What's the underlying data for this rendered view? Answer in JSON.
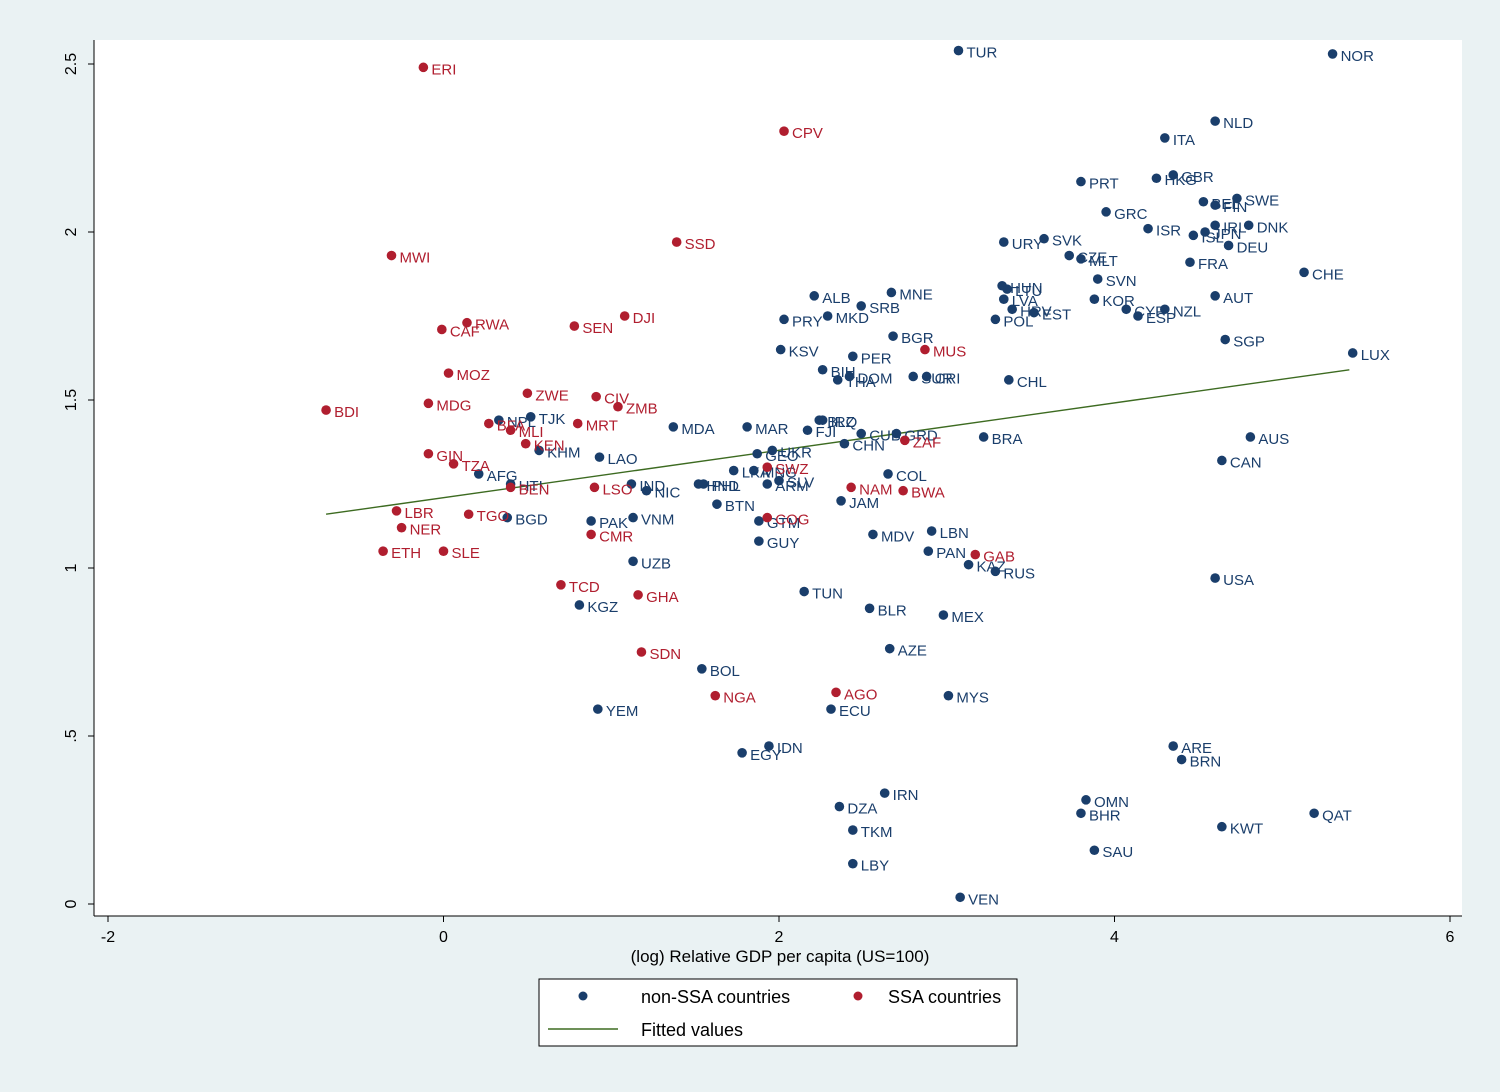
{
  "chart_data": {
    "type": "scatter",
    "xlabel": "(log) Relative GDP per capita (US=100)",
    "ylabel": "",
    "xlim": [
      -2,
      6
    ],
    "ylim": [
      0,
      2.55
    ],
    "x_ticks": [
      {
        "v": -2,
        "label": "-2"
      },
      {
        "v": 0,
        "label": "0"
      },
      {
        "v": 2,
        "label": "2"
      },
      {
        "v": 4,
        "label": "4"
      },
      {
        "v": 6,
        "label": "6"
      }
    ],
    "y_ticks": [
      {
        "v": 0,
        "label": "0"
      },
      {
        "v": 0.5,
        "label": ".5"
      },
      {
        "v": 1,
        "label": "1"
      },
      {
        "v": 1.5,
        "label": "1.5"
      },
      {
        "v": 2,
        "label": "2"
      },
      {
        "v": 2.5,
        "label": "2.5"
      }
    ],
    "grid": false,
    "colors": {
      "non_ssa": "#1a3e6b",
      "ssa": "#b01e2f",
      "fit": "#3d6b21"
    },
    "legend": {
      "position": "bottom",
      "entries": [
        {
          "label": "non-SSA countries",
          "kind": "non_ssa"
        },
        {
          "label": "SSA countries",
          "kind": "ssa"
        },
        {
          "label": "Fitted values",
          "kind": "fit"
        }
      ]
    },
    "fitted_line": [
      {
        "x": -0.7,
        "y": 1.16
      },
      {
        "x": 5.4,
        "y": 1.59
      }
    ],
    "series": [
      {
        "name": "non-SSA countries",
        "kind": "non_ssa",
        "points": [
          {
            "label": "TUR",
            "x": 3.07,
            "y": 2.54
          },
          {
            "label": "NOR",
            "x": 5.3,
            "y": 2.53
          },
          {
            "label": "NLD",
            "x": 4.6,
            "y": 2.33
          },
          {
            "label": "ITA",
            "x": 4.3,
            "y": 2.28
          },
          {
            "label": "PRT",
            "x": 3.8,
            "y": 2.15
          },
          {
            "label": "HKG",
            "x": 4.25,
            "y": 2.16
          },
          {
            "label": "GBR",
            "x": 4.35,
            "y": 2.17
          },
          {
            "label": "SWE",
            "x": 4.73,
            "y": 2.1
          },
          {
            "label": "BEL",
            "x": 4.53,
            "y": 2.09
          },
          {
            "label": "FIN",
            "x": 4.6,
            "y": 2.08
          },
          {
            "label": "GRC",
            "x": 3.95,
            "y": 2.06
          },
          {
            "label": "ISR",
            "x": 4.2,
            "y": 2.01
          },
          {
            "label": "IRL",
            "x": 4.6,
            "y": 2.02
          },
          {
            "label": "DNK",
            "x": 4.8,
            "y": 2.02
          },
          {
            "label": "ISL",
            "x": 4.47,
            "y": 1.99
          },
          {
            "label": "JPN",
            "x": 4.54,
            "y": 2.0
          },
          {
            "label": "DEU",
            "x": 4.68,
            "y": 1.96
          },
          {
            "label": "URY",
            "x": 3.34,
            "y": 1.97
          },
          {
            "label": "SVK",
            "x": 3.58,
            "y": 1.98
          },
          {
            "label": "CZE",
            "x": 3.73,
            "y": 1.93
          },
          {
            "label": "MLT",
            "x": 3.8,
            "y": 1.92
          },
          {
            "label": "FRA",
            "x": 4.45,
            "y": 1.91
          },
          {
            "label": "CHE",
            "x": 5.13,
            "y": 1.88
          },
          {
            "label": "SVN",
            "x": 3.9,
            "y": 1.86
          },
          {
            "label": "HUN",
            "x": 3.33,
            "y": 1.84
          },
          {
            "label": "LTU",
            "x": 3.36,
            "y": 1.83
          },
          {
            "label": "AUT",
            "x": 4.6,
            "y": 1.81
          },
          {
            "label": "ALB",
            "x": 2.21,
            "y": 1.81
          },
          {
            "label": "MNE",
            "x": 2.67,
            "y": 1.82
          },
          {
            "label": "LVA",
            "x": 3.34,
            "y": 1.8
          },
          {
            "label": "KOR",
            "x": 3.88,
            "y": 1.8
          },
          {
            "label": "SRB",
            "x": 2.49,
            "y": 1.78
          },
          {
            "label": "HRV",
            "x": 3.39,
            "y": 1.77
          },
          {
            "label": "CYP",
            "x": 4.07,
            "y": 1.77
          },
          {
            "label": "NZL",
            "x": 4.3,
            "y": 1.77
          },
          {
            "label": "EST",
            "x": 3.52,
            "y": 1.76
          },
          {
            "label": "ESP",
            "x": 4.14,
            "y": 1.75
          },
          {
            "label": "MKD",
            "x": 2.29,
            "y": 1.75
          },
          {
            "label": "PRY",
            "x": 2.03,
            "y": 1.74
          },
          {
            "label": "POL",
            "x": 3.29,
            "y": 1.74
          },
          {
            "label": "BGR",
            "x": 2.68,
            "y": 1.69
          },
          {
            "label": "SGP",
            "x": 4.66,
            "y": 1.68
          },
          {
            "label": "KSV",
            "x": 2.01,
            "y": 1.65
          },
          {
            "label": "LUX",
            "x": 5.42,
            "y": 1.64
          },
          {
            "label": "PER",
            "x": 2.44,
            "y": 1.63
          },
          {
            "label": "BIH",
            "x": 2.26,
            "y": 1.59
          },
          {
            "label": "DOM",
            "x": 2.42,
            "y": 1.57
          },
          {
            "label": "THA",
            "x": 2.35,
            "y": 1.56
          },
          {
            "label": "SUR",
            "x": 2.8,
            "y": 1.57
          },
          {
            "label": "CRI",
            "x": 2.88,
            "y": 1.57
          },
          {
            "label": "CHL",
            "x": 3.37,
            "y": 1.56
          },
          {
            "label": "TJK",
            "x": 0.52,
            "y": 1.45
          },
          {
            "label": "NPL",
            "x": 0.33,
            "y": 1.44
          },
          {
            "label": "BLZ",
            "x": 2.24,
            "y": 1.44
          },
          {
            "label": "IRQ",
            "x": 2.26,
            "y": 1.44
          },
          {
            "label": "MDA",
            "x": 1.37,
            "y": 1.42
          },
          {
            "label": "MAR",
            "x": 1.81,
            "y": 1.42
          },
          {
            "label": "FJI",
            "x": 2.17,
            "y": 1.41
          },
          {
            "label": "CUB",
            "x": 2.49,
            "y": 1.4
          },
          {
            "label": "GRD",
            "x": 2.7,
            "y": 1.4
          },
          {
            "label": "BRA",
            "x": 3.22,
            "y": 1.39
          },
          {
            "label": "AUS",
            "x": 4.81,
            "y": 1.39
          },
          {
            "label": "CHN",
            "x": 2.39,
            "y": 1.37
          },
          {
            "label": "KHM",
            "x": 0.57,
            "y": 1.35
          },
          {
            "label": "UKR",
            "x": 1.96,
            "y": 1.35
          },
          {
            "label": "GEO",
            "x": 1.87,
            "y": 1.34
          },
          {
            "label": "LAO",
            "x": 0.93,
            "y": 1.33
          },
          {
            "label": "CAN",
            "x": 4.64,
            "y": 1.32
          },
          {
            "label": "LKA",
            "x": 1.73,
            "y": 1.29
          },
          {
            "label": "MNG",
            "x": 1.85,
            "y": 1.29
          },
          {
            "label": "COL",
            "x": 2.65,
            "y": 1.28
          },
          {
            "label": "AFG",
            "x": 0.21,
            "y": 1.28
          },
          {
            "label": "HTI",
            "x": 0.4,
            "y": 1.25
          },
          {
            "label": "IND",
            "x": 1.12,
            "y": 1.25
          },
          {
            "label": "HND",
            "x": 1.52,
            "y": 1.25
          },
          {
            "label": "PHL",
            "x": 1.55,
            "y": 1.25
          },
          {
            "label": "SLV",
            "x": 2.0,
            "y": 1.26
          },
          {
            "label": "ARM",
            "x": 1.93,
            "y": 1.25
          },
          {
            "label": "NIC",
            "x": 1.21,
            "y": 1.23
          },
          {
            "label": "JAM",
            "x": 2.37,
            "y": 1.2
          },
          {
            "label": "BTN",
            "x": 1.63,
            "y": 1.19
          },
          {
            "label": "BGD",
            "x": 0.38,
            "y": 1.15
          },
          {
            "label": "VNM",
            "x": 1.13,
            "y": 1.15
          },
          {
            "label": "PAK",
            "x": 0.88,
            "y": 1.14
          },
          {
            "label": "GTM",
            "x": 1.88,
            "y": 1.14
          },
          {
            "label": "LBN",
            "x": 2.91,
            "y": 1.11
          },
          {
            "label": "MDV",
            "x": 2.56,
            "y": 1.1
          },
          {
            "label": "GUY",
            "x": 1.88,
            "y": 1.08
          },
          {
            "label": "PAN",
            "x": 2.89,
            "y": 1.05
          },
          {
            "label": "UZB",
            "x": 1.13,
            "y": 1.02
          },
          {
            "label": "KAZ",
            "x": 3.13,
            "y": 1.01
          },
          {
            "label": "RUS",
            "x": 3.29,
            "y": 0.99
          },
          {
            "label": "USA",
            "x": 4.6,
            "y": 0.97
          },
          {
            "label": "TUN",
            "x": 2.15,
            "y": 0.93
          },
          {
            "label": "KGZ",
            "x": 0.81,
            "y": 0.89
          },
          {
            "label": "BLR",
            "x": 2.54,
            "y": 0.88
          },
          {
            "label": "MEX",
            "x": 2.98,
            "y": 0.86
          },
          {
            "label": "AZE",
            "x": 2.66,
            "y": 0.76
          },
          {
            "label": "BOL",
            "x": 1.54,
            "y": 0.7
          },
          {
            "label": "MYS",
            "x": 3.01,
            "y": 0.62
          },
          {
            "label": "YEM",
            "x": 0.92,
            "y": 0.58
          },
          {
            "label": "ECU",
            "x": 2.31,
            "y": 0.58
          },
          {
            "label": "ARE",
            "x": 4.35,
            "y": 0.47
          },
          {
            "label": "IDN",
            "x": 1.94,
            "y": 0.47
          },
          {
            "label": "EGY",
            "x": 1.78,
            "y": 0.45
          },
          {
            "label": "BRN",
            "x": 4.4,
            "y": 0.43
          },
          {
            "label": "IRN",
            "x": 2.63,
            "y": 0.33
          },
          {
            "label": "OMN",
            "x": 3.83,
            "y": 0.31
          },
          {
            "label": "DZA",
            "x": 2.36,
            "y": 0.29
          },
          {
            "label": "BHR",
            "x": 3.8,
            "y": 0.27
          },
          {
            "label": "QAT",
            "x": 5.19,
            "y": 0.27
          },
          {
            "label": "KWT",
            "x": 4.64,
            "y": 0.23
          },
          {
            "label": "TKM",
            "x": 2.44,
            "y": 0.22
          },
          {
            "label": "SAU",
            "x": 3.88,
            "y": 0.16
          },
          {
            "label": "LBY",
            "x": 2.44,
            "y": 0.12
          },
          {
            "label": "VEN",
            "x": 3.08,
            "y": 0.02
          }
        ]
      },
      {
        "name": "SSA countries",
        "kind": "ssa",
        "points": [
          {
            "label": "ERI",
            "x": -0.12,
            "y": 2.49
          },
          {
            "label": "CPV",
            "x": 2.03,
            "y": 2.3
          },
          {
            "label": "SSD",
            "x": 1.39,
            "y": 1.97
          },
          {
            "label": "MWI",
            "x": -0.31,
            "y": 1.93
          },
          {
            "label": "RWA",
            "x": 0.14,
            "y": 1.73
          },
          {
            "label": "CAF",
            "x": -0.01,
            "y": 1.71
          },
          {
            "label": "SEN",
            "x": 0.78,
            "y": 1.72
          },
          {
            "label": "DJI",
            "x": 1.08,
            "y": 1.75
          },
          {
            "label": "MUS",
            "x": 2.87,
            "y": 1.65
          },
          {
            "label": "MOZ",
            "x": 0.03,
            "y": 1.58
          },
          {
            "label": "ZWE",
            "x": 0.5,
            "y": 1.52
          },
          {
            "label": "CIV",
            "x": 0.91,
            "y": 1.51
          },
          {
            "label": "MDG",
            "x": -0.09,
            "y": 1.49
          },
          {
            "label": "ZMB",
            "x": 1.04,
            "y": 1.48
          },
          {
            "label": "BDI",
            "x": -0.7,
            "y": 1.47
          },
          {
            "label": "BFA",
            "x": 0.27,
            "y": 1.43
          },
          {
            "label": "MRT",
            "x": 0.8,
            "y": 1.43
          },
          {
            "label": "MLI",
            "x": 0.4,
            "y": 1.41
          },
          {
            "label": "KEN",
            "x": 0.49,
            "y": 1.37
          },
          {
            "label": "ZAF",
            "x": 2.75,
            "y": 1.38
          },
          {
            "label": "GIN",
            "x": -0.09,
            "y": 1.34
          },
          {
            "label": "TZA",
            "x": 0.06,
            "y": 1.31
          },
          {
            "label": "SWZ",
            "x": 1.93,
            "y": 1.3
          },
          {
            "label": "BEN",
            "x": 0.4,
            "y": 1.24
          },
          {
            "label": "LSO",
            "x": 0.9,
            "y": 1.24
          },
          {
            "label": "NAM",
            "x": 2.43,
            "y": 1.24
          },
          {
            "label": "BWA",
            "x": 2.74,
            "y": 1.23
          },
          {
            "label": "LBR",
            "x": -0.28,
            "y": 1.17
          },
          {
            "label": "TGO",
            "x": 0.15,
            "y": 1.16
          },
          {
            "label": "COG",
            "x": 1.93,
            "y": 1.15
          },
          {
            "label": "NER",
            "x": -0.25,
            "y": 1.12
          },
          {
            "label": "CMR",
            "x": 0.88,
            "y": 1.1
          },
          {
            "label": "ETH",
            "x": -0.36,
            "y": 1.05
          },
          {
            "label": "SLE",
            "x": 0.0,
            "y": 1.05
          },
          {
            "label": "GAB",
            "x": 3.17,
            "y": 1.04
          },
          {
            "label": "TCD",
            "x": 0.7,
            "y": 0.95
          },
          {
            "label": "GHA",
            "x": 1.16,
            "y": 0.92
          },
          {
            "label": "SDN",
            "x": 1.18,
            "y": 0.75
          },
          {
            "label": "NGA",
            "x": 1.62,
            "y": 0.62
          },
          {
            "label": "AGO",
            "x": 2.34,
            "y": 0.63
          }
        ]
      }
    ]
  }
}
